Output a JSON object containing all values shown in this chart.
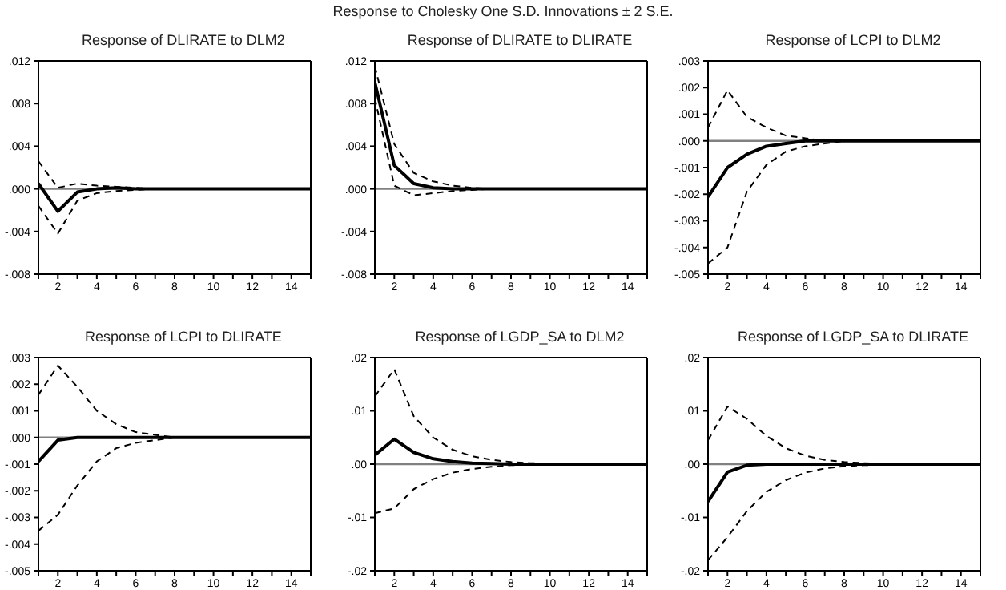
{
  "chart_data": [
    {
      "type": "line",
      "title": "Response of DLIRATE to DLM2",
      "annotations": [
        "Response to Cholesky One S.D. Innovations ± 2 S.E."
      ],
      "x": [
        1,
        2,
        3,
        4,
        5,
        6,
        7,
        8,
        9,
        10,
        11,
        12,
        13,
        14,
        15
      ],
      "xlim": [
        1,
        15
      ],
      "xticks": [
        {
          "value": 1,
          "label": null
        },
        2,
        {
          "value": 3,
          "label": null
        },
        4,
        {
          "value": 5,
          "label": null
        },
        6,
        {
          "value": 7,
          "label": null
        },
        8,
        {
          "value": 9,
          "label": null
        },
        10,
        {
          "value": 11,
          "label": null
        },
        12,
        {
          "value": 13,
          "label": null
        },
        14,
        {
          "value": 15,
          "label": null
        }
      ],
      "ylim": [
        -0.008,
        0.012
      ],
      "yticks": [
        {
          "value": -0.008,
          "label": "-.008"
        },
        {
          "value": -0.004,
          "label": "-.004"
        },
        {
          "value": 0,
          "label": ".000"
        },
        {
          "value": 0.004,
          "label": ".004"
        },
        {
          "value": 0.008,
          "label": ".008"
        },
        {
          "value": 0.012,
          "label": ".012"
        }
      ],
      "ref_lines": [
        {
          "axis": "y",
          "value": 0,
          "color": "#808080"
        }
      ],
      "series": [
        {
          "color": "#000000",
          "line_style": "solid",
          "values": [
            0.0005,
            -0.0021,
            -0.0003,
            0.0,
            0.0001,
            0,
            0,
            0,
            0,
            0,
            0,
            0,
            0,
            0,
            0
          ]
        },
        {
          "color": "#000000",
          "line_style": "dashed",
          "values": [
            0.0026,
            0.0001,
            0.0005,
            0.0003,
            0.0002,
            0.0001,
            0,
            0,
            0,
            0,
            0,
            0,
            0,
            0,
            0
          ]
        },
        {
          "color": "#000000",
          "line_style": "dashed",
          "values": [
            -0.0016,
            -0.0042,
            -0.0011,
            -0.0004,
            -0.0002,
            -0.0001,
            0,
            0,
            0,
            0,
            0,
            0,
            0,
            0,
            0
          ]
        }
      ]
    },
    {
      "type": "line",
      "title": "Response of DLIRATE to DLIRATE",
      "x": [
        1,
        2,
        3,
        4,
        5,
        6,
        7,
        8,
        9,
        10,
        11,
        12,
        13,
        14,
        15
      ],
      "xlim": [
        1,
        15
      ],
      "xticks": [
        {
          "value": 1,
          "label": null
        },
        2,
        {
          "value": 3,
          "label": null
        },
        4,
        {
          "value": 5,
          "label": null
        },
        6,
        {
          "value": 7,
          "label": null
        },
        8,
        {
          "value": 9,
          "label": null
        },
        10,
        {
          "value": 11,
          "label": null
        },
        12,
        {
          "value": 13,
          "label": null
        },
        14,
        {
          "value": 15,
          "label": null
        }
      ],
      "ylim": [
        -0.008,
        0.012
      ],
      "yticks": [
        {
          "value": -0.008,
          "label": "-.008"
        },
        {
          "value": -0.004,
          "label": "-.004"
        },
        {
          "value": 0,
          "label": ".000"
        },
        {
          "value": 0.004,
          "label": ".004"
        },
        {
          "value": 0.008,
          "label": ".008"
        },
        {
          "value": 0.012,
          "label": ".012"
        }
      ],
      "ref_lines": [
        {
          "axis": "y",
          "value": 0,
          "color": "#808080"
        }
      ],
      "series": [
        {
          "color": "#000000",
          "line_style": "solid",
          "values": [
            0.01,
            0.0022,
            0.0005,
            0.0001,
            0,
            0,
            0,
            0,
            0,
            0,
            0,
            0,
            0,
            0,
            0
          ]
        },
        {
          "color": "#000000",
          "line_style": "dashed",
          "values": [
            0.0115,
            0.0042,
            0.0015,
            0.0007,
            0.0003,
            0.0001,
            0,
            0,
            0,
            0,
            0,
            0,
            0,
            0,
            0
          ]
        },
        {
          "color": "#000000",
          "line_style": "dashed",
          "values": [
            0.0085,
            0.0003,
            -0.0006,
            -0.0004,
            -0.0002,
            -0.0001,
            0,
            0,
            0,
            0,
            0,
            0,
            0,
            0,
            0
          ]
        }
      ]
    },
    {
      "type": "line",
      "title": "Response of LCPI to DLM2",
      "x": [
        1,
        2,
        3,
        4,
        5,
        6,
        7,
        8,
        9,
        10,
        11,
        12,
        13,
        14,
        15
      ],
      "xlim": [
        1,
        15
      ],
      "xticks": [
        {
          "value": 1,
          "label": null
        },
        2,
        {
          "value": 3,
          "label": null
        },
        4,
        {
          "value": 5,
          "label": null
        },
        6,
        {
          "value": 7,
          "label": null
        },
        8,
        {
          "value": 9,
          "label": null
        },
        10,
        {
          "value": 11,
          "label": null
        },
        12,
        {
          "value": 13,
          "label": null
        },
        14,
        {
          "value": 15,
          "label": null
        }
      ],
      "ylim": [
        -0.005,
        0.003
      ],
      "yticks": [
        {
          "value": -0.005,
          "label": "-.005"
        },
        {
          "value": -0.004,
          "label": "-.004"
        },
        {
          "value": -0.003,
          "label": "-.003"
        },
        {
          "value": -0.002,
          "label": "-.002"
        },
        {
          "value": -0.001,
          "label": "-.001"
        },
        {
          "value": 0,
          "label": ".000"
        },
        {
          "value": 0.001,
          "label": ".001"
        },
        {
          "value": 0.002,
          "label": ".002"
        },
        {
          "value": 0.003,
          "label": ".003"
        }
      ],
      "ref_lines": [
        {
          "axis": "y",
          "value": 0,
          "color": "#808080"
        }
      ],
      "series": [
        {
          "color": "#000000",
          "line_style": "solid",
          "values": [
            -0.0021,
            -0.001,
            -0.0005,
            -0.0002,
            -0.0001,
            0,
            0,
            0,
            0,
            0,
            0,
            0,
            0,
            0,
            0
          ]
        },
        {
          "color": "#000000",
          "line_style": "dashed",
          "values": [
            0.0005,
            0.0019,
            0.0009,
            0.0005,
            0.0002,
            0.0001,
            0,
            0,
            0,
            0,
            0,
            0,
            0,
            0,
            0
          ]
        },
        {
          "color": "#000000",
          "line_style": "dashed",
          "values": [
            -0.0046,
            -0.004,
            -0.0019,
            -0.0009,
            -0.0004,
            -0.0002,
            -0.0001,
            0,
            0,
            0,
            0,
            0,
            0,
            0,
            0
          ]
        }
      ]
    },
    {
      "type": "line",
      "title": "Response of LCPI to DLIRATE",
      "x": [
        1,
        2,
        3,
        4,
        5,
        6,
        7,
        8,
        9,
        10,
        11,
        12,
        13,
        14,
        15
      ],
      "xlim": [
        1,
        15
      ],
      "xticks": [
        {
          "value": 1,
          "label": null
        },
        2,
        {
          "value": 3,
          "label": null
        },
        4,
        {
          "value": 5,
          "label": null
        },
        6,
        {
          "value": 7,
          "label": null
        },
        8,
        {
          "value": 9,
          "label": null
        },
        10,
        {
          "value": 11,
          "label": null
        },
        12,
        {
          "value": 13,
          "label": null
        },
        14,
        {
          "value": 15,
          "label": null
        }
      ],
      "ylim": [
        -0.005,
        0.003
      ],
      "yticks": [
        {
          "value": -0.005,
          "label": "-.005"
        },
        {
          "value": -0.004,
          "label": "-.004"
        },
        {
          "value": -0.003,
          "label": "-.003"
        },
        {
          "value": -0.002,
          "label": "-.002"
        },
        {
          "value": -0.001,
          "label": "-.001"
        },
        {
          "value": 0,
          "label": ".000"
        },
        {
          "value": 0.001,
          "label": ".001"
        },
        {
          "value": 0.002,
          "label": ".002"
        },
        {
          "value": 0.003,
          "label": ".003"
        }
      ],
      "ref_lines": [
        {
          "axis": "y",
          "value": 0,
          "color": "#808080"
        }
      ],
      "series": [
        {
          "color": "#000000",
          "line_style": "solid",
          "values": [
            -0.0009,
            -0.0001,
            0,
            0,
            0,
            0,
            0,
            0,
            0,
            0,
            0,
            0,
            0,
            0,
            0
          ]
        },
        {
          "color": "#000000",
          "line_style": "dashed",
          "values": [
            0.0016,
            0.0027,
            0.0019,
            0.001,
            0.0005,
            0.0002,
            0.0001,
            0,
            0,
            0,
            0,
            0,
            0,
            0,
            0
          ]
        },
        {
          "color": "#000000",
          "line_style": "dashed",
          "values": [
            -0.0035,
            -0.0029,
            -0.0018,
            -0.0009,
            -0.0004,
            -0.0002,
            -0.0001,
            0,
            0,
            0,
            0,
            0,
            0,
            0,
            0
          ]
        }
      ]
    },
    {
      "type": "line",
      "title": "Response of LGDP_SA to DLM2",
      "x": [
        1,
        2,
        3,
        4,
        5,
        6,
        7,
        8,
        9,
        10,
        11,
        12,
        13,
        14,
        15
      ],
      "xlim": [
        1,
        15
      ],
      "xticks": [
        {
          "value": 1,
          "label": null
        },
        2,
        {
          "value": 3,
          "label": null
        },
        4,
        {
          "value": 5,
          "label": null
        },
        6,
        {
          "value": 7,
          "label": null
        },
        8,
        {
          "value": 9,
          "label": null
        },
        10,
        {
          "value": 11,
          "label": null
        },
        12,
        {
          "value": 13,
          "label": null
        },
        14,
        {
          "value": 15,
          "label": null
        }
      ],
      "ylim": [
        -0.02,
        0.02
      ],
      "yticks": [
        {
          "value": -0.02,
          "label": "-.02"
        },
        {
          "value": -0.01,
          "label": "-.01"
        },
        {
          "value": 0,
          "label": ".00"
        },
        {
          "value": 0.01,
          "label": ".01"
        },
        {
          "value": 0.02,
          "label": ".02"
        }
      ],
      "ref_lines": [
        {
          "axis": "y",
          "value": 0,
          "color": "#808080"
        }
      ],
      "series": [
        {
          "color": "#000000",
          "line_style": "solid",
          "values": [
            0.0017,
            0.0047,
            0.0022,
            0.001,
            0.0005,
            0.0002,
            0.0001,
            0,
            0,
            0,
            0,
            0,
            0,
            0,
            0
          ]
        },
        {
          "color": "#000000",
          "line_style": "dashed",
          "values": [
            0.0127,
            0.0178,
            0.009,
            0.005,
            0.0027,
            0.0015,
            0.0008,
            0.0004,
            0.0002,
            0.0001,
            0,
            0,
            0,
            0,
            0
          ]
        },
        {
          "color": "#000000",
          "line_style": "dashed",
          "values": [
            -0.0092,
            -0.0083,
            -0.0047,
            -0.0028,
            -0.0016,
            -0.0009,
            -0.0005,
            -0.0002,
            -0.0001,
            0,
            0,
            0,
            0,
            0,
            0
          ]
        }
      ]
    },
    {
      "type": "line",
      "title": "Response of LGDP_SA to DLIRATE",
      "x": [
        1,
        2,
        3,
        4,
        5,
        6,
        7,
        8,
        9,
        10,
        11,
        12,
        13,
        14,
        15
      ],
      "xlim": [
        1,
        15
      ],
      "xticks": [
        {
          "value": 1,
          "label": null
        },
        2,
        {
          "value": 3,
          "label": null
        },
        4,
        {
          "value": 5,
          "label": null
        },
        6,
        {
          "value": 7,
          "label": null
        },
        8,
        {
          "value": 9,
          "label": null
        },
        10,
        {
          "value": 11,
          "label": null
        },
        12,
        {
          "value": 13,
          "label": null
        },
        14,
        {
          "value": 15,
          "label": null
        }
      ],
      "ylim": [
        -0.02,
        0.02
      ],
      "yticks": [
        {
          "value": -0.02,
          "label": "-.02"
        },
        {
          "value": -0.01,
          "label": "-.01"
        },
        {
          "value": 0,
          "label": ".00"
        },
        {
          "value": 0.01,
          "label": ".01"
        },
        {
          "value": 0.02,
          "label": ".02"
        }
      ],
      "ref_lines": [
        {
          "axis": "y",
          "value": 0,
          "color": "#808080"
        }
      ],
      "series": [
        {
          "color": "#000000",
          "line_style": "solid",
          "values": [
            -0.007,
            -0.0015,
            -0.0002,
            0,
            0,
            0,
            0,
            0,
            0,
            0,
            0,
            0,
            0,
            0,
            0
          ]
        },
        {
          "color": "#000000",
          "line_style": "dashed",
          "values": [
            0.0045,
            0.0108,
            0.0085,
            0.0053,
            0.003,
            0.0016,
            0.0008,
            0.0004,
            0.0002,
            0.0001,
            0,
            0,
            0,
            0,
            0
          ]
        },
        {
          "color": "#000000",
          "line_style": "dashed",
          "values": [
            -0.018,
            -0.0137,
            -0.0088,
            -0.0052,
            -0.003,
            -0.0016,
            -0.0008,
            -0.0004,
            -0.0002,
            -0.0001,
            0,
            0,
            0,
            0,
            0
          ]
        }
      ]
    }
  ]
}
